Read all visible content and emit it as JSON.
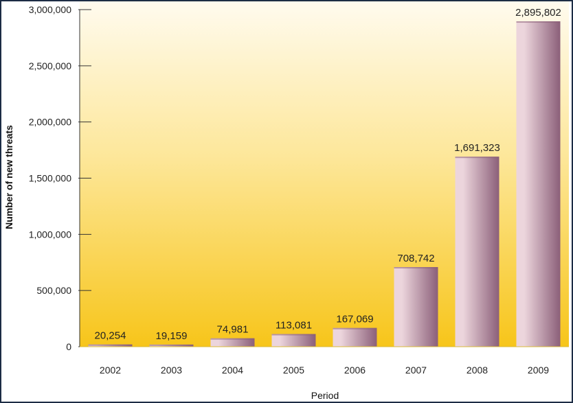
{
  "chart_data": {
    "type": "bar",
    "categories": [
      "2002",
      "2003",
      "2004",
      "2005",
      "2006",
      "2007",
      "2008",
      "2009"
    ],
    "values": [
      20254,
      19159,
      74981,
      113081,
      167069,
      708742,
      1691323,
      2895802
    ],
    "value_labels": [
      "20,254",
      "19,159",
      "74,981",
      "113,081",
      "167,069",
      "708,742",
      "1,691,323",
      "2,895,802"
    ],
    "xlabel": "Period",
    "ylabel": "Number of new threats",
    "ylim": [
      0,
      3000000
    ],
    "yticks": [
      0,
      500000,
      1000000,
      1500000,
      2000000,
      2500000,
      3000000
    ],
    "ytick_labels": [
      "0",
      "500,000",
      "1,000,000",
      "1,500,000",
      "2,000,000",
      "2,500,000",
      "3,000,000"
    ],
    "grid": false,
    "legend": "none",
    "colors": {
      "background_top": "#fffbef",
      "background_bottom": "#f7c51a",
      "bar_light": "#ecd5dc",
      "bar_dark": "#8b5f79",
      "frame": "#1c2c44"
    }
  }
}
